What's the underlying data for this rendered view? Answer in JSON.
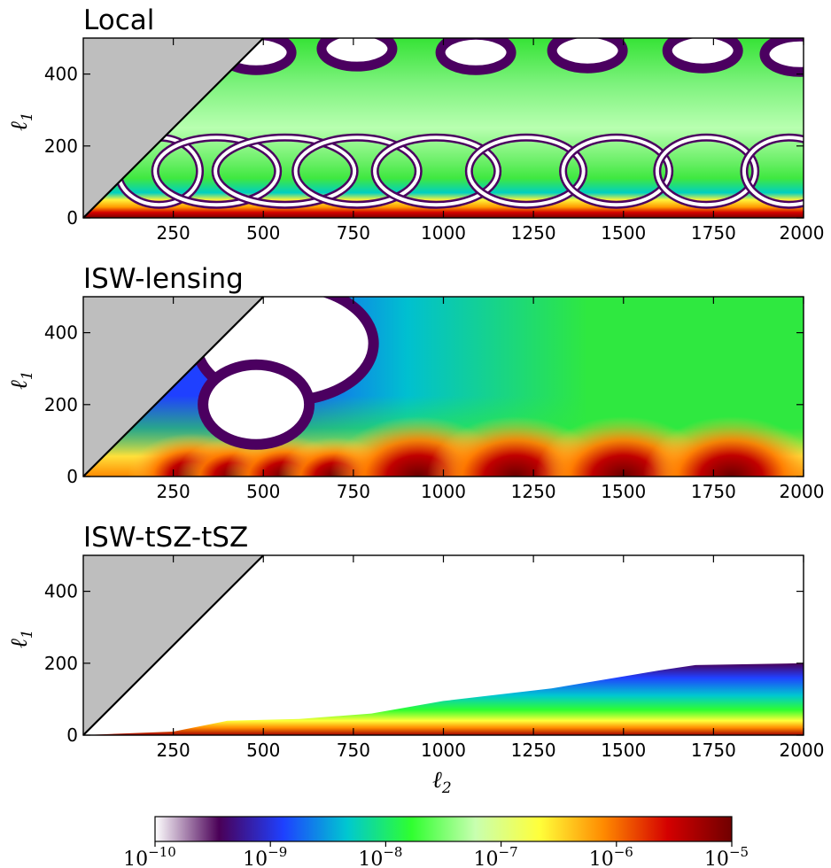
{
  "chart_data": [
    {
      "type": "heatmap",
      "title": "Local",
      "xlabel": "",
      "ylabel": "ℓ",
      "ylabel_sub": "1",
      "xlim": [
        0,
        2000
      ],
      "ylim": [
        0,
        500
      ],
      "x_ticks": [
        "250",
        "500",
        "750",
        "1000",
        "1250",
        "1500",
        "1750",
        "2000"
      ],
      "y_ticks": [
        "0",
        "200",
        "400"
      ],
      "masked_region": "ℓ1 > ℓ2 (gray)",
      "log_color_scale": true
    },
    {
      "type": "heatmap",
      "title": "ISW-lensing",
      "xlabel": "",
      "ylabel": "ℓ",
      "ylabel_sub": "1",
      "xlim": [
        0,
        2000
      ],
      "ylim": [
        0,
        500
      ],
      "x_ticks": [
        "250",
        "500",
        "750",
        "1000",
        "1250",
        "1500",
        "1750",
        "2000"
      ],
      "y_ticks": [
        "0",
        "200",
        "400"
      ],
      "masked_region": "ℓ1 > ℓ2 (gray)",
      "log_color_scale": true
    },
    {
      "type": "heatmap",
      "title": "ISW-tSZ-tSZ",
      "xlabel": "ℓ",
      "xlabel_sub": "2",
      "ylabel": "ℓ",
      "ylabel_sub": "1",
      "xlim": [
        0,
        2000
      ],
      "ylim": [
        0,
        500
      ],
      "x_ticks": [
        "250",
        "500",
        "750",
        "1000",
        "1250",
        "1500",
        "1750",
        "2000"
      ],
      "y_ticks": [
        "0",
        "200",
        "400"
      ],
      "masked_region": "ℓ1 > ℓ2 (gray)",
      "log_color_scale": true
    }
  ],
  "colorbar": {
    "scale": "log",
    "range": [
      1e-10,
      1e-05
    ],
    "tick_base": "10",
    "tick_exponents": [
      "−10",
      "−9",
      "−8",
      "−7",
      "−6",
      "−5"
    ],
    "colors": [
      "#ffffff",
      "#4a0057",
      "#1e40ff",
      "#00c8d0",
      "#2fff2f",
      "#c8ffb0",
      "#ffff3a",
      "#ff8a00",
      "#d40000",
      "#700000"
    ]
  },
  "colors": {
    "mask": "#bebebe",
    "ring": "#ffffff"
  }
}
